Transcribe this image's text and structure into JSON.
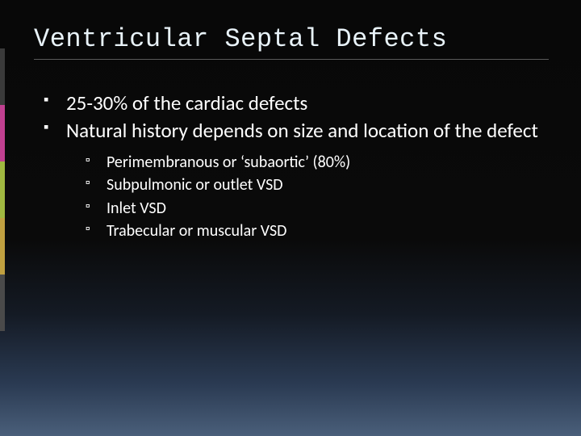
{
  "slide": {
    "title": "Ventricular Septal Defects",
    "title_color": "#e8f2f8",
    "title_font": "Consolas",
    "title_fontsize": 32,
    "underline_color": "#5a5a5a",
    "bullets": [
      {
        "text": "25-30% of the cardiac defects"
      },
      {
        "text": "Natural history depends on size and location of the defect",
        "sub": [
          "Perimembranous or ‘subaortic’ (80%)",
          "Subpulmonic or outlet VSD",
          "Inlet VSD",
          "Trabecular or muscular VSD"
        ]
      }
    ],
    "body_color": "#ffffff",
    "body_fontsize_main": 25,
    "body_fontsize_sub": 20
  },
  "background": {
    "gradient_stops": [
      "#080808",
      "#0a0a0a",
      "#141a24",
      "#2a3a52",
      "#4a5f7a"
    ]
  },
  "color_tabs": [
    {
      "color": "#3a3a3a"
    },
    {
      "color": "#c04090"
    },
    {
      "color": "#a0b840"
    },
    {
      "color": "#c0a040"
    },
    {
      "color": "#4a4a4a"
    }
  ]
}
